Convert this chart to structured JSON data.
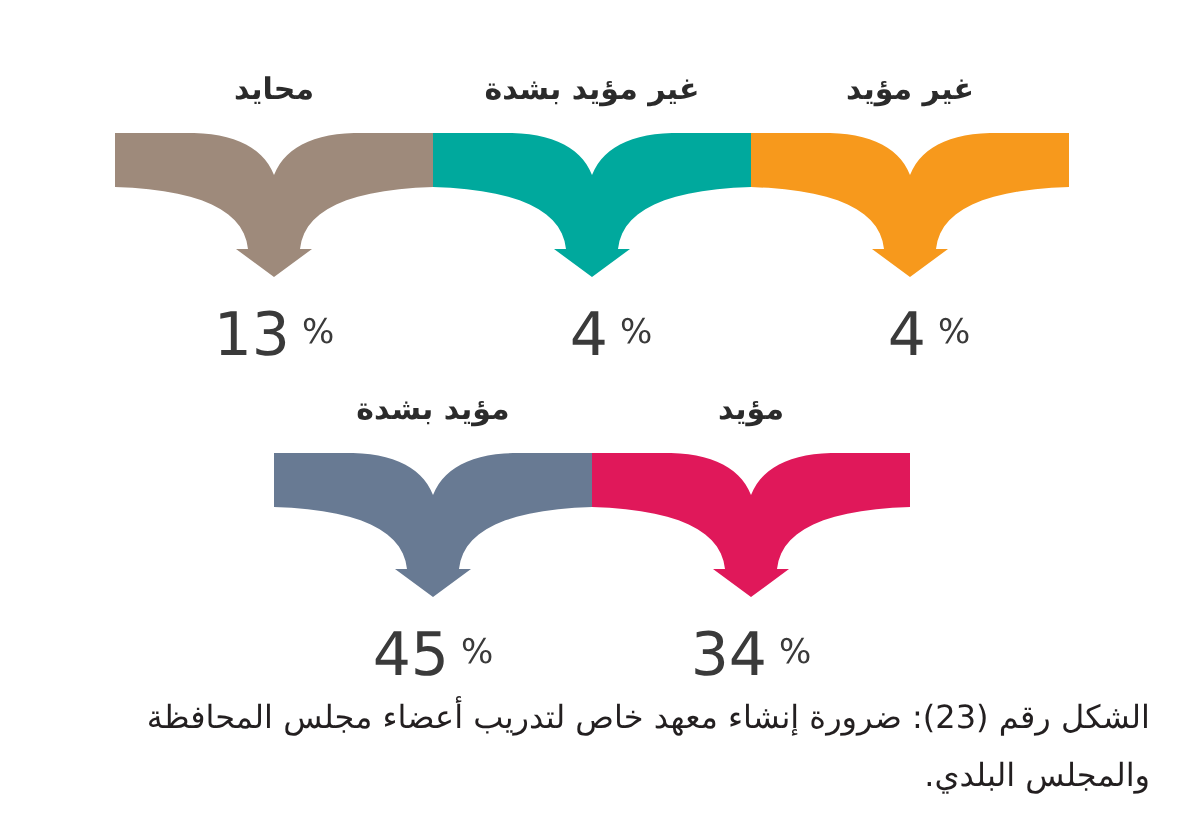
{
  "chart_data": {
    "type": "other",
    "categories": [
      "محايد",
      "غير مؤيد بشدة",
      "غير مؤيد",
      "مؤيد بشدة",
      "مؤيد"
    ],
    "values": [
      13,
      4,
      4,
      45,
      34
    ],
    "colors": [
      "#9e8a7b",
      "#00a99d",
      "#f7991c",
      "#687a93",
      "#e0185a"
    ],
    "value_labels": [
      "13 %",
      "4 %",
      "4 %",
      "45 %",
      "34 %"
    ],
    "annotations": [
      "الشكل رقم (23): ضرورة إنشاء معهد خاص لتدريب أعضاء مجلس المحافظة والمجلس البلدي."
    ]
  }
}
